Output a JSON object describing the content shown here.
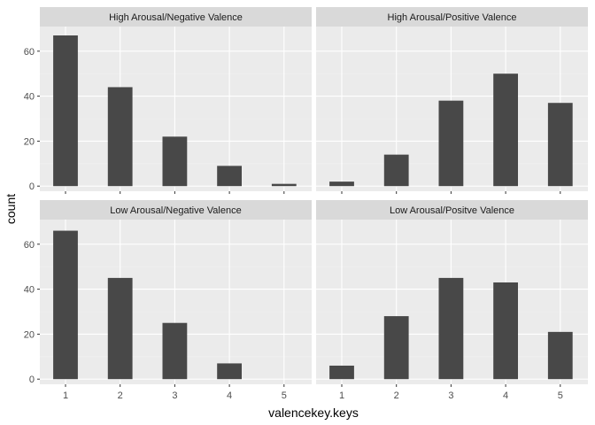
{
  "chart_data": {
    "type": "bar",
    "xlabel": "valencekey.keys",
    "ylabel": "count",
    "categories": [
      1,
      2,
      3,
      4,
      5
    ],
    "ylim": [
      0,
      70
    ],
    "yticks": [
      0,
      20,
      40,
      60
    ],
    "grid": true,
    "colors": {
      "panel_bg": "#ebebeb",
      "strip_bg": "#d9d9d9",
      "grid_major": "#ffffff",
      "grid_minor": "#f2f2f2",
      "bar": "#484848"
    },
    "panels": [
      {
        "label": "High Arousal/Negative Valence",
        "values": [
          67,
          44,
          22,
          9,
          1
        ]
      },
      {
        "label": "High Arousal/Positive Valence",
        "values": [
          2,
          14,
          38,
          50,
          37
        ]
      },
      {
        "label": "Low Arousal/Negative Valence",
        "values": [
          66,
          45,
          25,
          7,
          0
        ]
      },
      {
        "label": "Low Arousal/Positve Valence",
        "values": [
          6,
          28,
          45,
          43,
          21
        ]
      }
    ]
  }
}
